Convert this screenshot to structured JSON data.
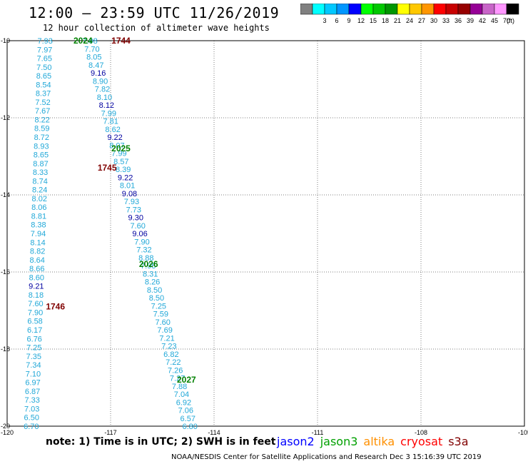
{
  "header": {
    "title": "12:00 – 23:59 UTC 11/26/2019",
    "subtitle": "12 hour collection of altimeter wave heights"
  },
  "legend": {
    "unit": "(ft)",
    "items": [
      {
        "label": "",
        "color": "#808080"
      },
      {
        "label": "3",
        "color": "#00ffff"
      },
      {
        "label": "6",
        "color": "#00c8ff"
      },
      {
        "label": "9",
        "color": "#0096ff"
      },
      {
        "label": "12",
        "color": "#0000ff"
      },
      {
        "label": "15",
        "color": "#00ff00"
      },
      {
        "label": "18",
        "color": "#00c800"
      },
      {
        "label": "21",
        "color": "#009600"
      },
      {
        "label": "24",
        "color": "#ffff00"
      },
      {
        "label": "27",
        "color": "#ffc800"
      },
      {
        "label": "30",
        "color": "#ff9600"
      },
      {
        "label": "33",
        "color": "#ff0000"
      },
      {
        "label": "36",
        "color": "#c80000"
      },
      {
        "label": "39",
        "color": "#960000"
      },
      {
        "label": "42",
        "color": "#960096"
      },
      {
        "label": "45",
        "color": "#c864c8"
      },
      {
        "label": "70",
        "color": "#ff96ff"
      },
      {
        "label": "",
        "color": "#000000"
      }
    ]
  },
  "map": {
    "lon_range": [
      -120,
      -105
    ],
    "lat_range": [
      -20,
      -10
    ],
    "lon_ticks": [
      "-120",
      "-117",
      "-114",
      "-111",
      "-108",
      "-105"
    ],
    "lat_ticks": [
      "-10",
      "-12",
      "-14",
      "-16",
      "-18",
      "-20"
    ],
    "lon_tick_values": [
      -120,
      -117,
      -114,
      -111,
      -108,
      -105
    ],
    "lat_tick_values": [
      -10,
      -12,
      -14,
      -16,
      -18,
      -20
    ],
    "tracks": [
      {
        "satellite": "cryosat",
        "color": "#21a8d8",
        "start_lon": -118.9,
        "end_lon": -119.3,
        "lat_start": -10,
        "lat_end": -20,
        "values": [
          "7.93",
          "7.97",
          "7.65",
          "7.50",
          "8.65",
          "8.54",
          "8.37",
          "7.52",
          "7.67",
          "8.22",
          "8.59",
          "8.72",
          "8.93",
          "8.65",
          "8.87",
          "8.33",
          "8.74",
          "8.24",
          "8.02",
          "8.06",
          "8.81",
          "8.38",
          "7.94",
          "8.14",
          "8.82",
          "8.64",
          "8.66",
          "8.60",
          "9.21",
          "8.18",
          "7.60",
          "7.90",
          "6.58",
          "6.17",
          "6.76",
          "7.25",
          "7.35",
          "7.34",
          "7.10",
          "6.97",
          "6.87",
          "7.33",
          "7.03",
          "6.50",
          "6.70"
        ],
        "dark_index": [
          28
        ]
      },
      {
        "satellite": "cryosat",
        "color": "#21a8d8",
        "start_lon": -117.6,
        "end_lon": -114.7,
        "lat_start": -10,
        "lat_end": -20,
        "values": [
          "7.98",
          "7.70",
          "8.05",
          "8.47",
          "9.16",
          "8.90",
          "7.82",
          "8.10",
          "8.12",
          "7.99",
          "7.81",
          "8.62",
          "9.22",
          "8.07",
          "7.99",
          "8.57",
          "8.39",
          "9.22",
          "8.01",
          "9.08",
          "7.93",
          "7.73",
          "9.30",
          "7.60",
          "9.06",
          "7.90",
          "7.32",
          "8.88",
          "7.95",
          "8.31",
          "8.26",
          "8.50",
          "8.50",
          "7.25",
          "7.59",
          "7.60",
          "7.69",
          "7.21",
          "7.23",
          "6.82",
          "7.22",
          "7.26",
          "7.27",
          "7.88",
          "7.04",
          "6.92",
          "7.06",
          "6.57",
          "6.80"
        ],
        "dark_index": [
          4,
          8,
          12,
          17,
          19,
          22,
          24
        ]
      }
    ],
    "time_labels": [
      {
        "text": "2024",
        "lon": -117.8,
        "lat": -10.0,
        "color": "#008000"
      },
      {
        "text": "1744",
        "lon": -116.7,
        "lat": -10.0,
        "color": "#800000"
      },
      {
        "text": "2025",
        "lon": -116.7,
        "lat": -12.8,
        "color": "#008000"
      },
      {
        "text": "1745",
        "lon": -117.1,
        "lat": -13.3,
        "color": "#800000"
      },
      {
        "text": "2026",
        "lon": -115.9,
        "lat": -15.8,
        "color": "#008000"
      },
      {
        "text": "1746",
        "lon": -118.6,
        "lat": -16.9,
        "color": "#800000"
      },
      {
        "text": "2027",
        "lon": -114.8,
        "lat": -18.8,
        "color": "#008000"
      }
    ]
  },
  "footer": {
    "note": "note:  1) Time is in UTC;  2) SWH is in feet",
    "satellites": [
      {
        "name": "jason2",
        "color": "#0000ff"
      },
      {
        "name": "jason3",
        "color": "#00a000"
      },
      {
        "name": "altika",
        "color": "#ff9000"
      },
      {
        "name": "cryosat",
        "color": "#ff0000"
      },
      {
        "name": "s3a",
        "color": "#800000"
      }
    ],
    "credit": "NOAA/NESDIS Center for Satellite Applications and Research     Dec  3 15:16:39 UTC 2019"
  }
}
